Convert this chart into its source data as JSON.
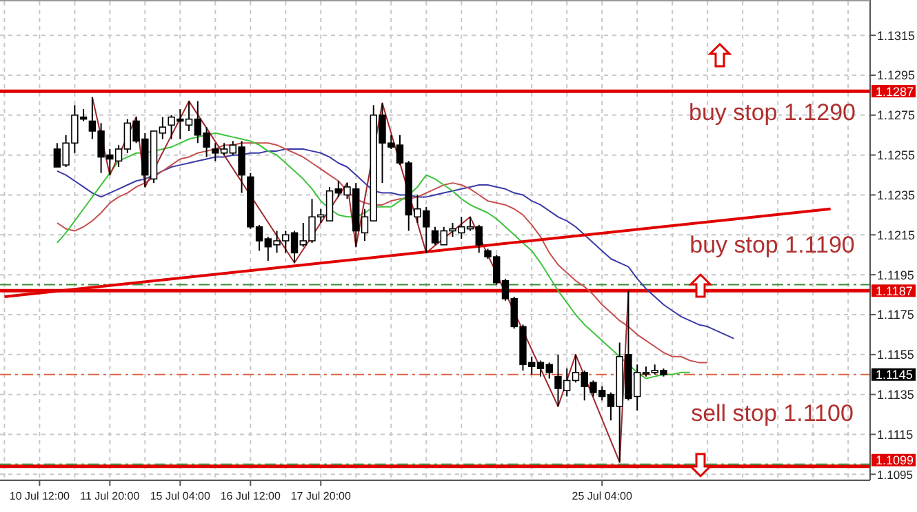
{
  "chart_data": {
    "type": "candlestick",
    "categories": [
      null,
      null,
      null,
      null,
      "10 Jul 12:00",
      null,
      null,
      null,
      null,
      null,
      null,
      null,
      "11 Jul 20:00",
      null,
      null,
      null,
      null,
      null,
      null,
      null,
      "15 Jul 04:00",
      null,
      null,
      null,
      null,
      null,
      null,
      null,
      "16 Jul 12:00",
      null,
      null,
      null,
      null,
      null,
      null,
      null,
      "17 Jul 20:00",
      null,
      null,
      null,
      null,
      null,
      null,
      null,
      null,
      null,
      null,
      null,
      null,
      null,
      null,
      null,
      null,
      null,
      null,
      null,
      null,
      null,
      null,
      null,
      null,
      null,
      null,
      null,
      null,
      null,
      null,
      null,
      "25 Jul 04:00",
      null,
      null,
      null,
      null,
      null,
      null,
      null,
      null,
      null,
      null,
      null,
      null,
      null,
      null,
      null,
      null,
      null,
      null,
      null,
      null,
      null,
      null,
      null,
      null,
      null,
      null,
      null,
      null,
      null,
      null
    ],
    "ohlc": [
      null,
      null,
      null,
      null,
      null,
      null,
      [
        1.1258,
        1.1261,
        1.1249,
        1.1249
      ],
      [
        1.125,
        1.1265,
        1.1249,
        1.1261
      ],
      [
        1.1261,
        1.128,
        1.1256,
        1.1275
      ],
      [
        1.1274,
        1.1278,
        1.1272,
        1.1273
      ],
      [
        1.1272,
        1.1284,
        1.1263,
        1.1267
      ],
      [
        1.1267,
        1.1271,
        1.1246,
        1.1254
      ],
      [
        1.1255,
        1.1258,
        1.1245,
        1.1253
      ],
      [
        1.1252,
        1.126,
        1.1249,
        1.1258
      ],
      [
        1.1258,
        1.1273,
        1.1256,
        1.1271
      ],
      [
        1.1272,
        1.1274,
        1.1261,
        1.1262
      ],
      [
        1.1263,
        1.1266,
        1.1239,
        1.1245
      ],
      [
        1.1243,
        1.1267,
        1.1241,
        1.1267
      ],
      [
        1.1266,
        1.1274,
        1.1263,
        1.1269
      ],
      [
        1.127,
        1.1275,
        1.1263,
        1.1274
      ],
      [
        1.1273,
        1.1278,
        1.1263,
        1.1272
      ],
      [
        1.127,
        1.1282,
        1.1267,
        1.1273
      ],
      [
        1.1273,
        1.1282,
        1.1261,
        1.1265
      ],
      [
        1.1266,
        1.1269,
        1.1254,
        1.1259
      ],
      [
        1.1258,
        1.1261,
        1.1252,
        1.1256
      ],
      [
        1.1256,
        1.1261,
        1.1255,
        1.1258
      ],
      [
        1.1256,
        1.1262,
        1.1255,
        1.126
      ],
      [
        1.1259,
        1.1262,
        1.1236,
        1.1245
      ],
      [
        1.1244,
        1.1246,
        1.1218,
        1.1219
      ],
      [
        1.1219,
        1.122,
        1.1207,
        1.1212
      ],
      [
        1.1213,
        1.1214,
        1.1202,
        1.1209
      ],
      [
        1.121,
        1.1217,
        1.1206,
        1.1212
      ],
      [
        1.1212,
        1.1217,
        1.1206,
        1.1215
      ],
      [
        1.1216,
        1.1217,
        1.1201,
        1.1206
      ],
      [
        1.121,
        1.1221,
        1.1209,
        1.1212
      ],
      [
        1.1212,
        1.1233,
        1.1211,
        1.1224
      ],
      [
        1.1224,
        1.1228,
        1.1221,
        1.1225
      ],
      [
        1.1222,
        1.1239,
        1.1222,
        1.1237
      ],
      [
        1.1238,
        1.1242,
        1.1234,
        1.1236
      ],
      [
        1.1235,
        1.1241,
        1.1233,
        1.1239
      ],
      [
        1.1238,
        1.1241,
        1.1209,
        1.1217
      ],
      [
        1.1216,
        1.1228,
        1.1212,
        1.1224
      ],
      [
        1.1222,
        1.128,
        1.1222,
        1.1275
      ],
      [
        1.1275,
        1.1281,
        1.1241,
        1.1261
      ],
      [
        1.1261,
        1.1265,
        1.1258,
        1.1259
      ],
      [
        1.126,
        1.1265,
        1.125,
        1.1251
      ],
      [
        1.1251,
        1.1252,
        1.1217,
        1.1225
      ],
      [
        1.1224,
        1.1235,
        1.1221,
        1.1228
      ],
      [
        1.1227,
        1.1229,
        1.1206,
        1.1219
      ],
      [
        1.1217,
        1.1219,
        1.121,
        1.1211
      ],
      [
        1.121,
        1.1219,
        1.121,
        1.1217
      ],
      [
        1.1217,
        1.1221,
        1.1214,
        1.1218
      ],
      [
        1.1216,
        1.1224,
        1.1213,
        1.1219
      ],
      [
        1.1218,
        1.1224,
        1.1217,
        1.1219
      ],
      [
        1.1219,
        1.122,
        1.1206,
        1.121
      ],
      [
        1.1207,
        1.1208,
        1.1203,
        1.1204
      ],
      [
        1.1204,
        1.1205,
        1.119,
        1.1191
      ],
      [
        1.1192,
        1.1193,
        1.1182,
        1.1183
      ],
      [
        1.1183,
        1.1184,
        1.1168,
        1.1169
      ],
      [
        1.1169,
        1.117,
        1.1147,
        1.115
      ],
      [
        1.1151,
        1.1154,
        1.1145,
        1.1149
      ],
      [
        1.1151,
        1.1152,
        1.1144,
        1.1148
      ],
      [
        1.115,
        1.1151,
        1.1143,
        1.1146
      ],
      [
        1.1144,
        1.1155,
        1.1129,
        1.1138
      ],
      [
        1.1137,
        1.1148,
        1.1134,
        1.1142
      ],
      [
        1.1142,
        1.1155,
        1.1141,
        1.1146
      ],
      [
        1.1146,
        1.1147,
        1.1132,
        1.1139
      ],
      [
        1.1141,
        1.1142,
        1.1134,
        1.1136
      ],
      [
        1.1137,
        1.1139,
        1.1132,
        1.1134
      ],
      [
        1.1135,
        1.1136,
        1.1122,
        1.1129
      ],
      [
        1.1129,
        1.1161,
        1.1101,
        1.1154
      ],
      [
        1.1155,
        1.1187,
        1.1132,
        1.1133
      ],
      [
        1.1134,
        1.115,
        1.1127,
        1.1146
      ],
      [
        1.1146,
        1.1149,
        1.1144,
        1.1146
      ],
      [
        1.1146,
        1.115,
        1.1145,
        1.1147
      ],
      [
        1.1147,
        1.1148,
        1.1144,
        1.1145
      ],
      null,
      null,
      null,
      null,
      null,
      null,
      null,
      null,
      null,
      null,
      null,
      null,
      null,
      null,
      null,
      null,
      null,
      null,
      null,
      null,
      null,
      null,
      null
    ],
    "series": [
      {
        "type": "line",
        "color": "#3a3aa8",
        "values": [
          null,
          null,
          null,
          null,
          null,
          null,
          1.1247,
          1.1245,
          1.1242,
          1.1239,
          1.1236,
          1.1234,
          1.1236,
          1.1238,
          1.124,
          1.1242,
          1.1243,
          1.1245,
          1.1247,
          1.1249,
          1.125,
          1.1251,
          1.1252,
          1.1253,
          1.1254,
          1.1254,
          1.1255,
          1.1255,
          1.1256,
          1.1256,
          1.1257,
          1.1257,
          1.1258,
          1.1258,
          1.1258,
          1.1257,
          1.1256,
          1.1254,
          1.1251,
          1.1249,
          1.1245,
          1.1241,
          1.1237,
          1.1236,
          1.1236,
          1.1235,
          1.1235,
          1.1234,
          1.1234,
          1.1235,
          1.1236,
          1.1237,
          1.1238,
          1.1239,
          1.124,
          1.124,
          1.1239,
          1.1238,
          1.1236,
          1.1235,
          1.1232,
          1.123,
          1.1227,
          1.1224,
          1.1222,
          1.1219,
          1.1215,
          1.1211,
          1.1207,
          1.1203,
          1.1201,
          1.1199,
          1.1193,
          1.1188,
          1.1184,
          1.118,
          1.1177,
          1.1174,
          1.1172,
          1.117,
          1.1169,
          1.1167,
          1.1165,
          1.1163,
          null,
          null,
          null,
          null,
          null,
          null,
          null,
          null,
          null,
          null,
          null,
          null,
          null,
          null,
          null
        ]
      },
      {
        "type": "line",
        "color": "#c85050",
        "values": [
          null,
          null,
          null,
          null,
          null,
          null,
          1.1221,
          1.1218,
          1.1217,
          1.1219,
          1.1222,
          1.1226,
          1.1231,
          1.1234,
          1.1236,
          1.1239,
          1.1241,
          1.1244,
          1.1247,
          1.125,
          1.1253,
          1.1254,
          1.1256,
          1.1257,
          1.1258,
          1.126,
          1.126,
          1.1261,
          1.1261,
          1.1261,
          1.1261,
          1.126,
          1.1258,
          1.1256,
          1.1254,
          1.1251,
          1.1248,
          1.1245,
          1.1242,
          1.1237,
          1.1233,
          1.1231,
          1.123,
          1.123,
          1.1232,
          1.1233,
          1.1233,
          1.1234,
          1.1236,
          1.1238,
          1.124,
          1.1241,
          1.124,
          1.1238,
          1.1235,
          1.1232,
          1.1231,
          1.123,
          1.1228,
          1.1225,
          1.122,
          1.1214,
          1.1206,
          1.12,
          1.1196,
          1.1192,
          1.1189,
          1.1185,
          1.118,
          1.1176,
          1.1172,
          1.1169,
          1.1165,
          1.1162,
          1.1159,
          1.1156,
          1.1154,
          1.1154,
          1.1152,
          1.1151,
          1.1151,
          null,
          null,
          null,
          null,
          null,
          null,
          null,
          null,
          null,
          null,
          null,
          null,
          null,
          null,
          null,
          null,
          null,
          null
        ]
      },
      {
        "type": "line",
        "color": "#3cc43c",
        "values": [
          null,
          null,
          null,
          null,
          null,
          null,
          1.1211,
          1.1216,
          1.1222,
          1.1228,
          1.1234,
          1.124,
          1.1246,
          1.1252,
          1.1254,
          1.1256,
          1.1256,
          1.1257,
          1.1258,
          1.1259,
          1.1261,
          1.1263,
          1.1264,
          1.1265,
          1.1266,
          1.1265,
          1.1264,
          1.1263,
          1.1262,
          1.126,
          1.1257,
          1.1255,
          1.1251,
          1.1247,
          1.1243,
          1.1238,
          1.1232,
          1.1228,
          1.1225,
          1.1224,
          1.1224,
          1.1226,
          1.1229,
          1.1229,
          1.1229,
          1.1232,
          1.1235,
          1.1239,
          1.1245,
          1.1243,
          1.124,
          1.1237,
          1.1233,
          1.123,
          1.1228,
          1.1226,
          1.1223,
          1.1219,
          1.1215,
          1.1211,
          1.1207,
          1.1201,
          1.1194,
          1.1187,
          1.1181,
          1.1175,
          1.117,
          1.1166,
          1.1162,
          1.1158,
          1.1154,
          1.115,
          1.1146,
          1.1143,
          1.1144,
          1.1145,
          1.1145,
          1.1146,
          1.1146,
          null,
          null,
          null,
          null,
          null,
          null,
          null,
          null,
          null,
          null,
          null,
          null,
          null,
          null,
          null,
          null,
          null,
          null,
          null,
          null
        ]
      },
      {
        "type": "line",
        "color": "#a0282a",
        "values": [
          null,
          null,
          null,
          null,
          null,
          null,
          null,
          null,
          null,
          null,
          1.1284,
          null,
          1.1245,
          null,
          null,
          1.1274,
          1.1239,
          null,
          null,
          null,
          null,
          1.1282,
          null,
          null,
          null,
          null,
          null,
          null,
          null,
          null,
          null,
          null,
          null,
          1.1201,
          null,
          null,
          null,
          null,
          null,
          1.1241,
          1.1209,
          null,
          null,
          1.1281,
          null,
          null,
          null,
          null,
          1.1206,
          null,
          null,
          null,
          null,
          1.1224,
          null,
          null,
          null,
          null,
          null,
          null,
          null,
          null,
          null,
          1.1129,
          null,
          1.1155,
          null,
          null,
          null,
          null,
          1.1101,
          1.1187,
          null,
          null,
          null,
          null,
          null,
          null,
          null,
          null,
          null,
          null,
          null,
          null,
          null,
          null,
          null,
          null,
          null,
          null,
          null,
          null,
          null,
          null,
          null,
          null,
          null,
          null,
          null
        ]
      },
      {
        "type": "line",
        "color": "#e00000",
        "values": [
          1.1184,
          null,
          null,
          null,
          null,
          null,
          null,
          null,
          null,
          null,
          null,
          null,
          null,
          null,
          null,
          null,
          null,
          null,
          null,
          null,
          null,
          null,
          null,
          null,
          null,
          null,
          null,
          null,
          null,
          null,
          null,
          null,
          null,
          null,
          null,
          null,
          null,
          null,
          null,
          null,
          null,
          null,
          null,
          null,
          null,
          null,
          null,
          null,
          null,
          null,
          null,
          null,
          null,
          null,
          null,
          null,
          null,
          null,
          null,
          null,
          null,
          null,
          null,
          null,
          null,
          null,
          null,
          null,
          null,
          null,
          null,
          null,
          null,
          null,
          null,
          null,
          null,
          null,
          null,
          null,
          null,
          null,
          null,
          null,
          null,
          null,
          null,
          null,
          null,
          null,
          null,
          null,
          null,
          null,
          1.1228,
          null,
          null,
          null,
          null
        ]
      }
    ],
    "ref_lines": [
      {
        "axis": "y",
        "value": 1.1287,
        "label": "1.1287",
        "color": "#e00000"
      },
      {
        "axis": "y",
        "value": 1.1187,
        "label": "1.1187",
        "color": "#e00000"
      },
      {
        "axis": "y",
        "value": 1.1099,
        "label": "1.1099",
        "color": "#e00000"
      },
      {
        "axis": "y",
        "value": 1.1145,
        "label": "1.1145",
        "color": "#e06040",
        "line_style": "dashed"
      },
      {
        "axis": "y",
        "value": 1.119,
        "color": "#3c8c3c",
        "line_style": "dashed"
      },
      {
        "axis": "y",
        "value": 1.11,
        "color": "#3c8c3c",
        "line_style": "dashed"
      }
    ],
    "annotations": [
      "buy stop 1.1290",
      "buy stop 1.1190",
      "sell stop 1.1100"
    ],
    "ylim": [
      1.1092,
      1.1332
    ],
    "yticks": [
      1.1095,
      1.1115,
      1.1135,
      1.1155,
      1.1175,
      1.1195,
      1.1215,
      1.1235,
      1.1255,
      1.1275,
      1.1295,
      1.1315
    ],
    "grid": true
  }
}
